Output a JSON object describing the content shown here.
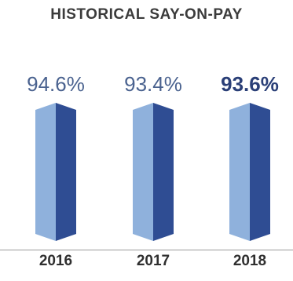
{
  "chart_data": {
    "type": "bar",
    "title": "HISTORICAL SAY-ON-PAY",
    "categories": [
      "2016",
      "2017",
      "2018"
    ],
    "values": [
      "94.6%",
      "93.4%",
      "93.6%"
    ],
    "numeric_values": [
      94.6,
      93.4,
      93.6
    ],
    "highlight_index": 2,
    "grid": false,
    "legend": "none"
  },
  "colors": {
    "title": "#3b3b3b",
    "value_label": "#4a628f",
    "value_label_highlight": "#2a3f77",
    "bar_light": "#8fb1dc",
    "bar_dark": "#2f4d93",
    "year_label": "#2f2f2f"
  }
}
